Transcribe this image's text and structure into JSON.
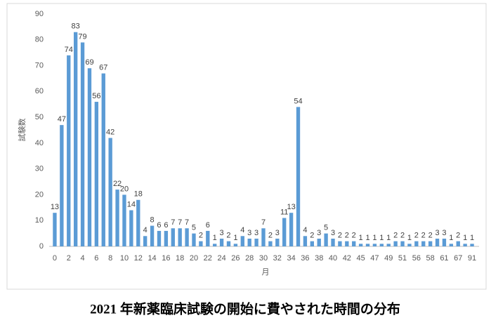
{
  "chart_data": {
    "type": "bar",
    "title": "2021 年新薬臨床試験の開始に費やされた時間の分布",
    "x_label": "月",
    "y_label": "試験数",
    "categories": [
      "0",
      null,
      "2",
      null,
      "4",
      null,
      "6",
      null,
      "8",
      null,
      "10",
      null,
      "12",
      null,
      "14",
      null,
      "16",
      null,
      "18",
      null,
      "20",
      null,
      "22",
      null,
      "24",
      null,
      "26",
      null,
      "28",
      null,
      "30",
      null,
      "32",
      null,
      "34",
      null,
      "36",
      null,
      "38",
      null,
      "40",
      null,
      "42",
      null,
      "45",
      null,
      "47",
      null,
      "49",
      null,
      "51",
      null,
      "56",
      null,
      "58",
      null,
      "61",
      null,
      "67",
      null,
      "91"
    ],
    "values": [
      13,
      47,
      74,
      83,
      79,
      69,
      56,
      67,
      42,
      22,
      20,
      14,
      18,
      4,
      8,
      6,
      6,
      7,
      7,
      7,
      5,
      2,
      6,
      1,
      3,
      2,
      1,
      4,
      3,
      3,
      7,
      2,
      3,
      11,
      13,
      54,
      4,
      2,
      3,
      5,
      3,
      2,
      2,
      2,
      1,
      1,
      1,
      1,
      1,
      2,
      2,
      1,
      2,
      2,
      2,
      3,
      3,
      1,
      2,
      1,
      1
    ],
    "color": "#5b9bd5",
    "ylim": [
      0,
      90
    ],
    "yticks": [
      0,
      10,
      20,
      30,
      40,
      50,
      60,
      70,
      80,
      90
    ],
    "grid": false
  }
}
